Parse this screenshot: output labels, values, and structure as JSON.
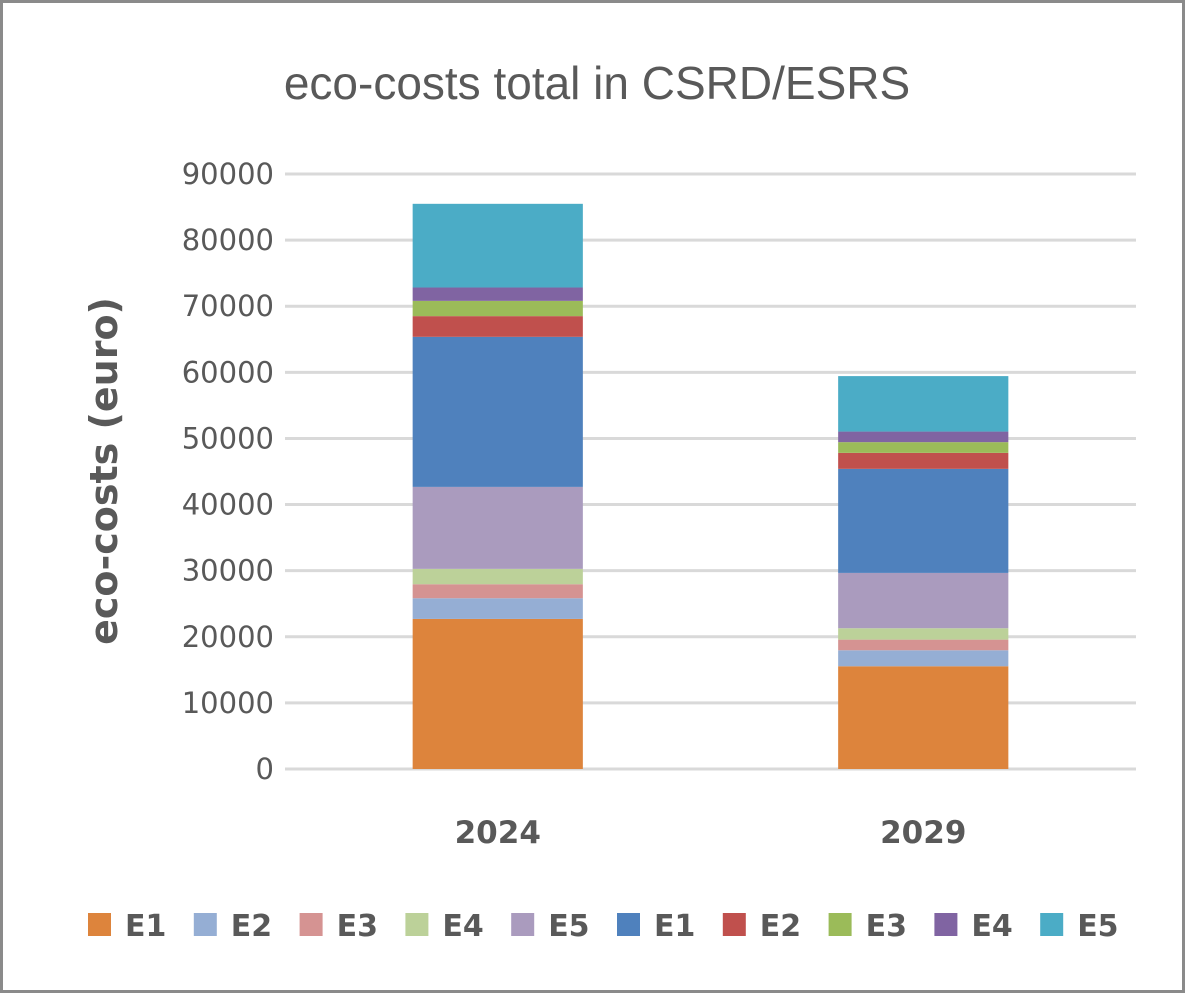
{
  "chart_data": {
    "type": "bar",
    "stacked": true,
    "title": "eco-costs total in CSRD/ESRS",
    "xlabel": "",
    "ylabel": "eco-costs (euro)",
    "ylim": [
      0,
      90000
    ],
    "yticks": [
      0,
      10000,
      20000,
      30000,
      40000,
      50000,
      60000,
      70000,
      80000,
      90000
    ],
    "ytick_labels": [
      "0",
      "10000",
      "20000",
      "30000",
      "40000",
      "50000",
      "60000",
      "70000",
      "80000",
      "90000"
    ],
    "grid": true,
    "legend_position": "bottom",
    "categories": [
      "2024",
      "2029"
    ],
    "series": [
      {
        "name": "E1",
        "color": "#DD843C",
        "values": [
          22700,
          15540
        ]
      },
      {
        "name": "E2",
        "color": "#95AED4",
        "values": [
          3130,
          2420
        ]
      },
      {
        "name": "E3",
        "color": "#D59392",
        "values": [
          2120,
          1610
        ]
      },
      {
        "name": "E4",
        "color": "#BCD199",
        "values": [
          2320,
          1720
        ]
      },
      {
        "name": "E5",
        "color": "#AA9BBE",
        "values": [
          12400,
          8370
        ]
      },
      {
        "name": "E1",
        "color": "#4F81BD",
        "values": [
          22700,
          15740
        ]
      },
      {
        "name": "E2",
        "color": "#C0504D",
        "values": [
          3130,
          2420
        ]
      },
      {
        "name": "E3",
        "color": "#9BBB59",
        "values": [
          2310,
          1620
        ]
      },
      {
        "name": "E4",
        "color": "#8064A2",
        "values": [
          2020,
          1600
        ]
      },
      {
        "name": "E5",
        "color": "#4BACC6",
        "values": [
          12660,
          8390
        ]
      }
    ],
    "totals": [
      85490,
      59430
    ]
  }
}
